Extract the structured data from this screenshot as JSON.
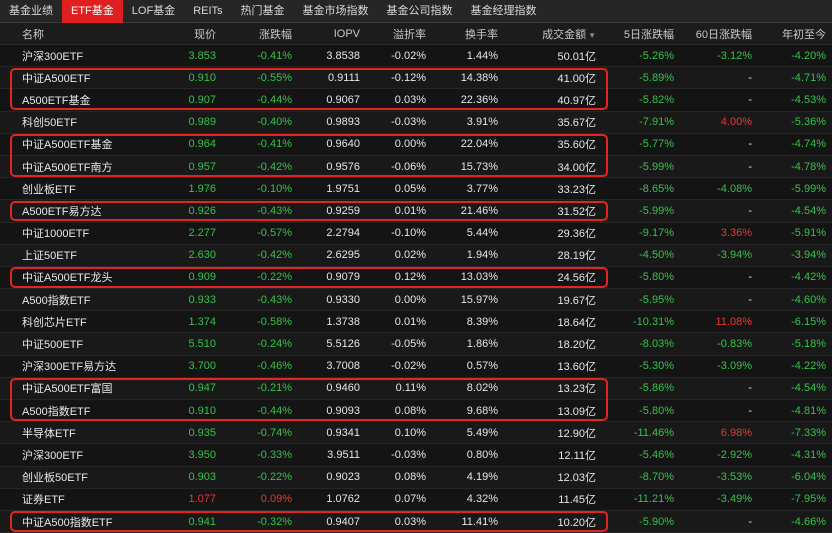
{
  "tabs": [
    "基金业绩",
    "ETF基金",
    "LOF基金",
    "REITs",
    "热门基金",
    "基金市场指数",
    "基金公司指数",
    "基金经理指数"
  ],
  "active_tab": 1,
  "columns": {
    "name": "名称",
    "price": "现价",
    "change": "涨跌幅",
    "iopv": "IOPV",
    "premium": "溢折率",
    "turnover": "换手率",
    "amount": "成交金额",
    "d5": "5日涨跌幅",
    "d60": "60日涨跌幅",
    "ytd": "年初至今"
  },
  "sort_icon": "sort-desc-icon",
  "colors": {
    "up": "#e53935",
    "down": "#36c24a",
    "active_tab": "#e02020",
    "highlight": "#e3251f"
  },
  "rows": [
    {
      "name": "沪深300ETF",
      "price": "3.853",
      "change": "-0.41%",
      "iopv": "3.8538",
      "premium": "-0.02%",
      "turnover": "1.44%",
      "amount": "50.01亿",
      "d5": "-5.26%",
      "d60": "-3.12%",
      "ytd": "-4.20%"
    },
    {
      "name": "中证A500ETF",
      "price": "0.910",
      "change": "-0.55%",
      "iopv": "0.9111",
      "premium": "-0.12%",
      "turnover": "14.38%",
      "amount": "41.00亿",
      "d5": "-5.89%",
      "d60": "-",
      "ytd": "-4.71%"
    },
    {
      "name": "A500ETF基金",
      "price": "0.907",
      "change": "-0.44%",
      "iopv": "0.9067",
      "premium": "0.03%",
      "turnover": "22.36%",
      "amount": "40.97亿",
      "d5": "-5.82%",
      "d60": "-",
      "ytd": "-4.53%"
    },
    {
      "name": "科创50ETF",
      "price": "0.989",
      "change": "-0.40%",
      "iopv": "0.9893",
      "premium": "-0.03%",
      "turnover": "3.91%",
      "amount": "35.67亿",
      "d5": "-7.91%",
      "d60": "4.00%",
      "ytd": "-5.36%"
    },
    {
      "name": "中证A500ETF基金",
      "price": "0.964",
      "change": "-0.41%",
      "iopv": "0.9640",
      "premium": "0.00%",
      "turnover": "22.04%",
      "amount": "35.60亿",
      "d5": "-5.77%",
      "d60": "-",
      "ytd": "-4.74%"
    },
    {
      "name": "中证A500ETF南方",
      "price": "0.957",
      "change": "-0.42%",
      "iopv": "0.9576",
      "premium": "-0.06%",
      "turnover": "15.73%",
      "amount": "34.00亿",
      "d5": "-5.99%",
      "d60": "-",
      "ytd": "-4.78%"
    },
    {
      "name": "创业板ETF",
      "price": "1.976",
      "change": "-0.10%",
      "iopv": "1.9751",
      "premium": "0.05%",
      "turnover": "3.77%",
      "amount": "33.23亿",
      "d5": "-8.65%",
      "d60": "-4.08%",
      "ytd": "-5.99%"
    },
    {
      "name": "A500ETF易方达",
      "price": "0.926",
      "change": "-0.43%",
      "iopv": "0.9259",
      "premium": "0.01%",
      "turnover": "21.46%",
      "amount": "31.52亿",
      "d5": "-5.99%",
      "d60": "-",
      "ytd": "-4.54%"
    },
    {
      "name": "中证1000ETF",
      "price": "2.277",
      "change": "-0.57%",
      "iopv": "2.2794",
      "premium": "-0.10%",
      "turnover": "5.44%",
      "amount": "29.36亿",
      "d5": "-9.17%",
      "d60": "3.36%",
      "ytd": "-5.91%"
    },
    {
      "name": "上证50ETF",
      "price": "2.630",
      "change": "-0.42%",
      "iopv": "2.6295",
      "premium": "0.02%",
      "turnover": "1.94%",
      "amount": "28.19亿",
      "d5": "-4.50%",
      "d60": "-3.94%",
      "ytd": "-3.94%"
    },
    {
      "name": "中证A500ETF龙头",
      "price": "0.909",
      "change": "-0.22%",
      "iopv": "0.9079",
      "premium": "0.12%",
      "turnover": "13.03%",
      "amount": "24.56亿",
      "d5": "-5.80%",
      "d60": "-",
      "ytd": "-4.42%"
    },
    {
      "name": "A500指数ETF",
      "price": "0.933",
      "change": "-0.43%",
      "iopv": "0.9330",
      "premium": "0.00%",
      "turnover": "15.97%",
      "amount": "19.67亿",
      "d5": "-5.95%",
      "d60": "-",
      "ytd": "-4.60%"
    },
    {
      "name": "科创芯片ETF",
      "price": "1.374",
      "change": "-0.58%",
      "iopv": "1.3738",
      "premium": "0.01%",
      "turnover": "8.39%",
      "amount": "18.64亿",
      "d5": "-10.31%",
      "d60": "11.08%",
      "ytd": "-6.15%"
    },
    {
      "name": "中证500ETF",
      "price": "5.510",
      "change": "-0.24%",
      "iopv": "5.5126",
      "premium": "-0.05%",
      "turnover": "1.86%",
      "amount": "18.20亿",
      "d5": "-8.03%",
      "d60": "-0.83%",
      "ytd": "-5.18%"
    },
    {
      "name": "沪深300ETF易方达",
      "price": "3.700",
      "change": "-0.46%",
      "iopv": "3.7008",
      "premium": "-0.02%",
      "turnover": "0.57%",
      "amount": "13.60亿",
      "d5": "-5.30%",
      "d60": "-3.09%",
      "ytd": "-4.22%"
    },
    {
      "name": "中证A500ETF富国",
      "price": "0.947",
      "change": "-0.21%",
      "iopv": "0.9460",
      "premium": "0.11%",
      "turnover": "8.02%",
      "amount": "13.23亿",
      "d5": "-5.86%",
      "d60": "-",
      "ytd": "-4.54%"
    },
    {
      "name": "A500指数ETF",
      "price": "0.910",
      "change": "-0.44%",
      "iopv": "0.9093",
      "premium": "0.08%",
      "turnover": "9.68%",
      "amount": "13.09亿",
      "d5": "-5.80%",
      "d60": "-",
      "ytd": "-4.81%"
    },
    {
      "name": "半导体ETF",
      "price": "0.935",
      "change": "-0.74%",
      "iopv": "0.9341",
      "premium": "0.10%",
      "turnover": "5.49%",
      "amount": "12.90亿",
      "d5": "-11.46%",
      "d60": "6.98%",
      "ytd": "-7.33%"
    },
    {
      "name": "沪深300ETF",
      "price": "3.950",
      "change": "-0.33%",
      "iopv": "3.9511",
      "premium": "-0.03%",
      "turnover": "0.80%",
      "amount": "12.11亿",
      "d5": "-5.46%",
      "d60": "-2.92%",
      "ytd": "-4.31%"
    },
    {
      "name": "创业板50ETF",
      "price": "0.903",
      "change": "-0.22%",
      "iopv": "0.9023",
      "premium": "0.08%",
      "turnover": "4.19%",
      "amount": "12.03亿",
      "d5": "-8.70%",
      "d60": "-3.53%",
      "ytd": "-6.04%"
    },
    {
      "name": "证券ETF",
      "price": "1.077",
      "change": "0.09%",
      "iopv": "1.0762",
      "premium": "0.07%",
      "turnover": "4.32%",
      "amount": "11.45亿",
      "d5": "-11.21%",
      "d60": "-3.49%",
      "ytd": "-7.95%"
    },
    {
      "name": "中证A500指数ETF",
      "price": "0.941",
      "change": "-0.32%",
      "iopv": "0.9407",
      "premium": "0.03%",
      "turnover": "11.41%",
      "amount": "10.20亿",
      "d5": "-5.90%",
      "d60": "-",
      "ytd": "-4.66%"
    }
  ],
  "highlight_groups": [
    [
      1,
      2
    ],
    [
      4,
      5
    ],
    [
      7
    ],
    [
      10
    ],
    [
      15,
      16
    ],
    [
      21
    ]
  ]
}
